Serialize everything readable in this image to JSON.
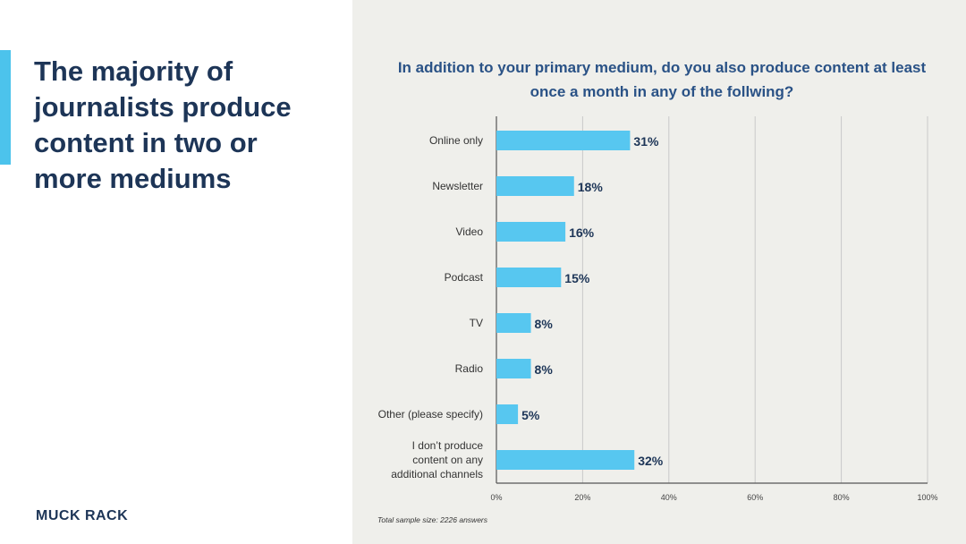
{
  "headline": "The majority of journalists produce content in two or more mediums",
  "brand": "MUCK RACK",
  "footnote": "Total sample size: 2226 answers",
  "colors": {
    "accent": "#4cc3ec",
    "bar": "#57c7f0",
    "title": "#2a5286",
    "headline": "#1d3557",
    "panel": "#efefeb",
    "grid": "#c9c9c9",
    "axis": "#555555"
  },
  "chart_data": {
    "type": "bar",
    "orientation": "horizontal",
    "title": "In addition to your primary medium, do you also produce content at least once a month in any of the follwing?",
    "categories": [
      [
        "Online only"
      ],
      [
        "Newsletter"
      ],
      [
        "Video"
      ],
      [
        "Podcast"
      ],
      [
        "TV"
      ],
      [
        "Radio"
      ],
      [
        "Other (please specify)"
      ],
      [
        "I don’t produce",
        "content on any",
        "additional channels"
      ]
    ],
    "values": [
      31,
      18,
      16,
      15,
      8,
      8,
      5,
      32
    ],
    "value_labels": [
      "31%",
      "18%",
      "16%",
      "15%",
      "8%",
      "8%",
      "5%",
      "32%"
    ],
    "xlim": [
      0,
      100
    ],
    "xticks": [
      0,
      20,
      40,
      60,
      80,
      100
    ],
    "xtick_labels": [
      "0%",
      "20%",
      "40%",
      "60%",
      "80%",
      "100%"
    ],
    "grid": true
  }
}
